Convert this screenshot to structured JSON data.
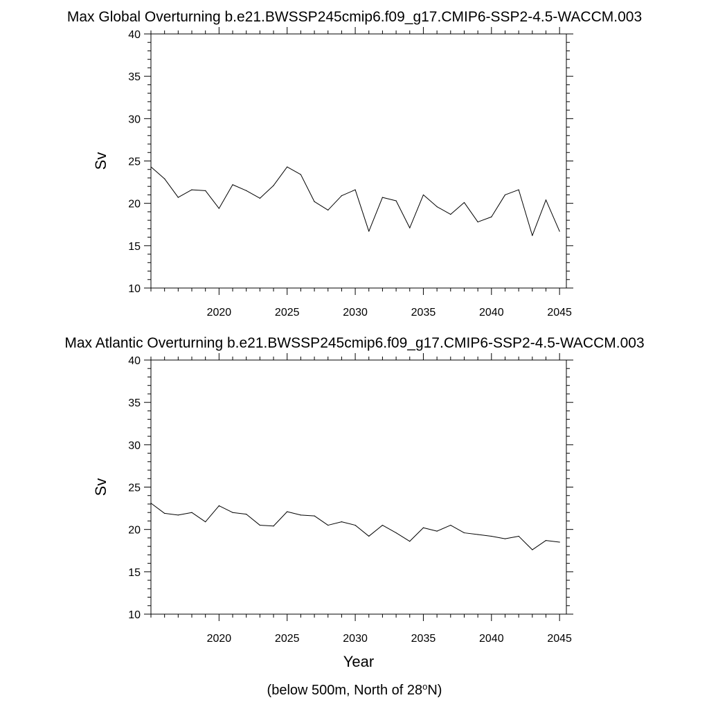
{
  "figure_footnote": "(below 500m, North of 28",
  "figure_footnote_sup": "o",
  "figure_footnote_tail": "N)",
  "colors": {
    "line": "#000000",
    "frame": "#000000",
    "background": "#ffffff"
  },
  "chart_data": [
    {
      "type": "line",
      "title": "Max Global Overturning b.e21.BWSSP245cmip6.f09_g17.CMIP6-SSP2-4.5-WACCM.003",
      "xlabel": "",
      "ylabel": "Sv",
      "xlim": [
        2015,
        2045.5
      ],
      "ylim": [
        10,
        40
      ],
      "grid": false,
      "x_ticks": [
        2020,
        2025,
        2030,
        2035,
        2040,
        2045
      ],
      "y_ticks": [
        10,
        15,
        20,
        25,
        30,
        35,
        40
      ],
      "x_minor_step": 1,
      "y_minor_step": 1,
      "series": [
        {
          "x": [
            2015.0,
            2016.0,
            2017.0,
            2018.0,
            2019.0,
            2020.0,
            2021.0,
            2022.0,
            2023.0,
            2024.0,
            2025.0,
            2026.0,
            2027.0,
            2028.0,
            2029.0,
            2030.0,
            2031.0,
            2032.0,
            2033.0,
            2034.0,
            2035.0,
            2036.0,
            2037.0,
            2038.0,
            2039.0,
            2040.0,
            2041.0,
            2042.0,
            2043.0,
            2044.0,
            2045.0
          ],
          "values": [
            24.3,
            22.9,
            20.7,
            21.6,
            21.5,
            19.4,
            22.2,
            21.5,
            20.6,
            22.1,
            24.3,
            23.4,
            20.2,
            19.2,
            20.9,
            21.6,
            16.7,
            20.7,
            20.3,
            17.1,
            21.0,
            19.6,
            18.7,
            20.1,
            17.8,
            18.4,
            21.0,
            21.6,
            16.2,
            20.4,
            16.7
          ]
        }
      ]
    },
    {
      "type": "line",
      "title": "Max Atlantic Overturning b.e21.BWSSP245cmip6.f09_g17.CMIP6-SSP2-4.5-WACCM.003",
      "xlabel": "Year",
      "ylabel": "Sv",
      "xlim": [
        2015,
        2045.5
      ],
      "ylim": [
        10,
        40
      ],
      "grid": false,
      "x_ticks": [
        2020,
        2025,
        2030,
        2035,
        2040,
        2045
      ],
      "y_ticks": [
        10,
        15,
        20,
        25,
        30,
        35,
        40
      ],
      "x_minor_step": 1,
      "y_minor_step": 1,
      "series": [
        {
          "x": [
            2015.0,
            2016.0,
            2017.0,
            2018.0,
            2019.0,
            2020.0,
            2021.0,
            2022.0,
            2023.0,
            2024.0,
            2025.0,
            2026.0,
            2027.0,
            2028.0,
            2029.0,
            2030.0,
            2031.0,
            2032.0,
            2033.0,
            2034.0,
            2035.0,
            2036.0,
            2037.0,
            2038.0,
            2039.0,
            2040.0,
            2041.0,
            2042.0,
            2043.0,
            2044.0,
            2045.0
          ],
          "values": [
            23.1,
            21.9,
            21.7,
            22.0,
            20.9,
            22.8,
            22.0,
            21.8,
            20.5,
            20.4,
            22.1,
            21.7,
            21.6,
            20.5,
            20.9,
            20.5,
            19.2,
            20.5,
            19.6,
            18.6,
            20.2,
            19.8,
            20.5,
            19.6,
            19.4,
            19.2,
            18.9,
            19.2,
            17.6,
            18.7,
            18.5
          ]
        }
      ]
    }
  ]
}
